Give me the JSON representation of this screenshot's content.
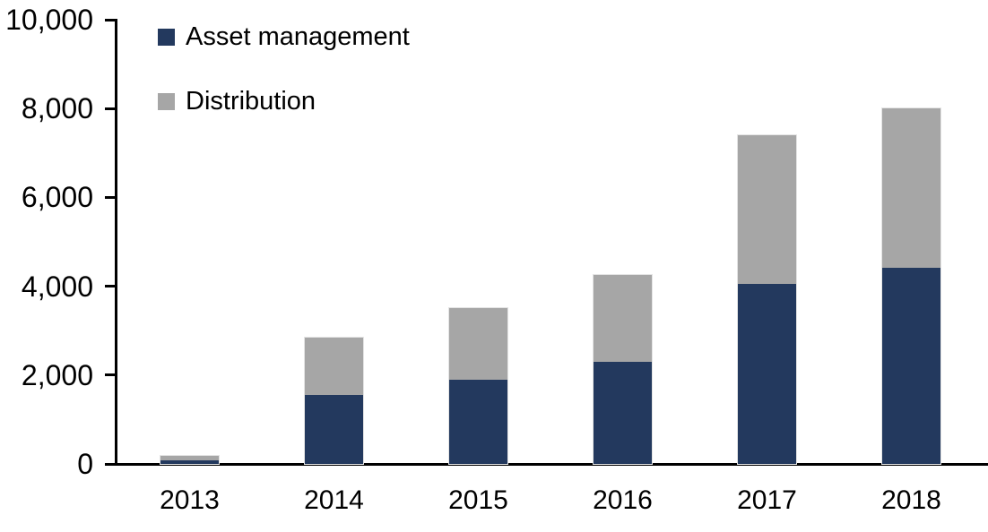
{
  "chart_data": {
    "type": "bar",
    "stacked": true,
    "title": "",
    "xlabel": "",
    "ylabel": "",
    "categories": [
      "2013",
      "2014",
      "2015",
      "2016",
      "2017",
      "2018"
    ],
    "series": [
      {
        "name": "Asset management",
        "color": "#23395e",
        "values": [
          90,
          1550,
          1900,
          2300,
          4050,
          4420
        ]
      },
      {
        "name": "Distribution",
        "color": "#a6a6a6",
        "values": [
          100,
          1300,
          1600,
          1950,
          3350,
          3580
        ]
      }
    ],
    "totals": [
      190,
      2850,
      3500,
      4250,
      7400,
      8000
    ],
    "ylim": [
      0,
      10000
    ],
    "ytick_interval": 2000,
    "ytick_labels": [
      "0",
      "2,000",
      "4,000",
      "6,000",
      "8,000",
      "10,000"
    ],
    "grid": false,
    "legend_position": "top-left-inside",
    "axis_color": "#000000",
    "bar_outline_color": "#e4e4e4"
  }
}
